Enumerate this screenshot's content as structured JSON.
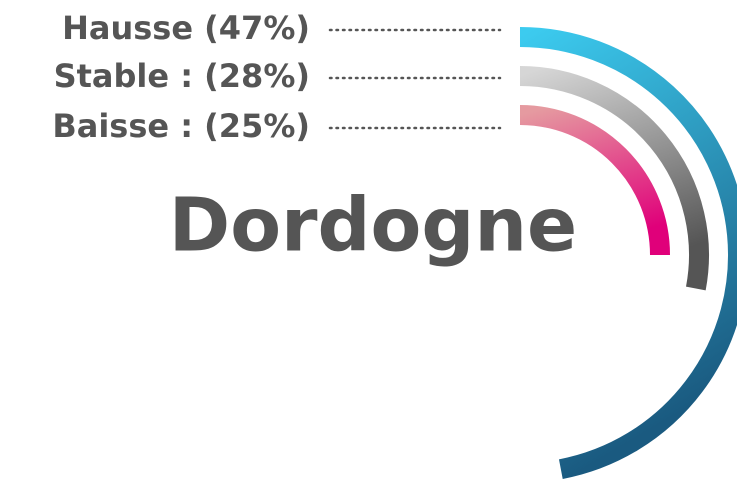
{
  "chart_data": {
    "type": "radial-bar",
    "title": "Dordogne",
    "categories": [
      "Hausse",
      "Stable :",
      "Baisse :"
    ],
    "values": [
      47,
      28,
      25
    ],
    "value_labels": [
      "(47%)",
      "(28%)",
      "(25%)"
    ],
    "series_colors": [
      [
        "#3ccbef",
        "#1a5a80"
      ],
      [
        "#d6d6d6",
        "#555555"
      ],
      [
        "#e59aa0",
        "#e0007a"
      ]
    ],
    "ylim": [
      0,
      100
    ]
  }
}
